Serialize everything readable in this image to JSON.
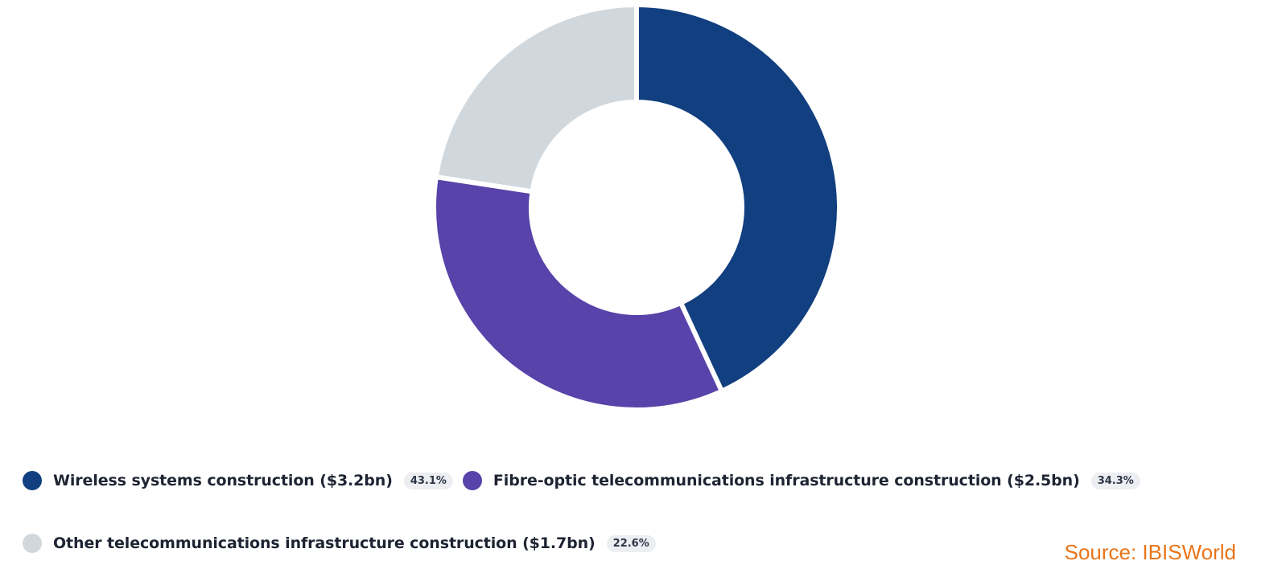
{
  "chart_data": {
    "type": "pie",
    "variant": "donut",
    "title": "",
    "slices": [
      {
        "label": "Wireless systems construction ($3.2bn)",
        "value": 43.1,
        "percent_label": "43.1%",
        "color": "#123f7f"
      },
      {
        "label": "Fibre-optic telecommunications infrastructure construction ($2.5bn)",
        "value": 34.3,
        "percent_label": "34.3%",
        "color": "#5743a9"
      },
      {
        "label": "Other telecommunications infrastructure construction ($1.7bn)",
        "value": 22.6,
        "percent_label": "22.6%",
        "color": "#d0d8de"
      }
    ],
    "start": "12 o'clock",
    "direction": "clockwise",
    "legend_position": "bottom"
  },
  "source_text": "Source: IBISWorld",
  "colors": {
    "separator": "#ffffff",
    "source": "#e8751a",
    "badge_bg": "#eceef2"
  }
}
